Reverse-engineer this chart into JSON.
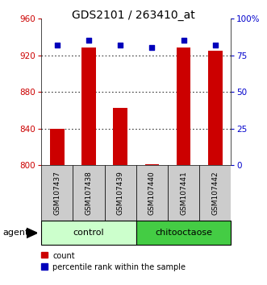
{
  "title": "GDS2101 / 263410_at",
  "samples": [
    "GSM107437",
    "GSM107438",
    "GSM107439",
    "GSM107440",
    "GSM107441",
    "GSM107442"
  ],
  "counts": [
    840,
    928,
    863,
    801,
    928,
    925
  ],
  "percentile_ranks": [
    82,
    85,
    82,
    80,
    85,
    82
  ],
  "ylim_left": [
    800,
    960
  ],
  "ylim_right": [
    0,
    100
  ],
  "yticks_left": [
    800,
    840,
    880,
    920,
    960
  ],
  "yticks_right": [
    0,
    25,
    50,
    75,
    100
  ],
  "ytick_labels_right": [
    "0",
    "25",
    "50",
    "75",
    "100%"
  ],
  "hgrid_vals": [
    840,
    880,
    920
  ],
  "bar_color": "#cc0000",
  "dot_color": "#0000bb",
  "bar_width": 0.45,
  "label_color_left": "#cc0000",
  "label_color_right": "#0000cc",
  "group_configs": [
    {
      "start": 0,
      "end": 2,
      "label": "control",
      "color": "#ccffcc"
    },
    {
      "start": 3,
      "end": 5,
      "label": "chitooctaose",
      "color": "#44cc44"
    }
  ],
  "sample_box_color": "#cccccc",
  "agent_label": "agent",
  "legend_count_label": "count",
  "legend_pct_label": "percentile rank within the sample",
  "title_fontsize": 10,
  "tick_fontsize": 7.5,
  "sample_label_fontsize": 6.5,
  "group_label_fontsize": 8,
  "legend_fontsize": 7
}
